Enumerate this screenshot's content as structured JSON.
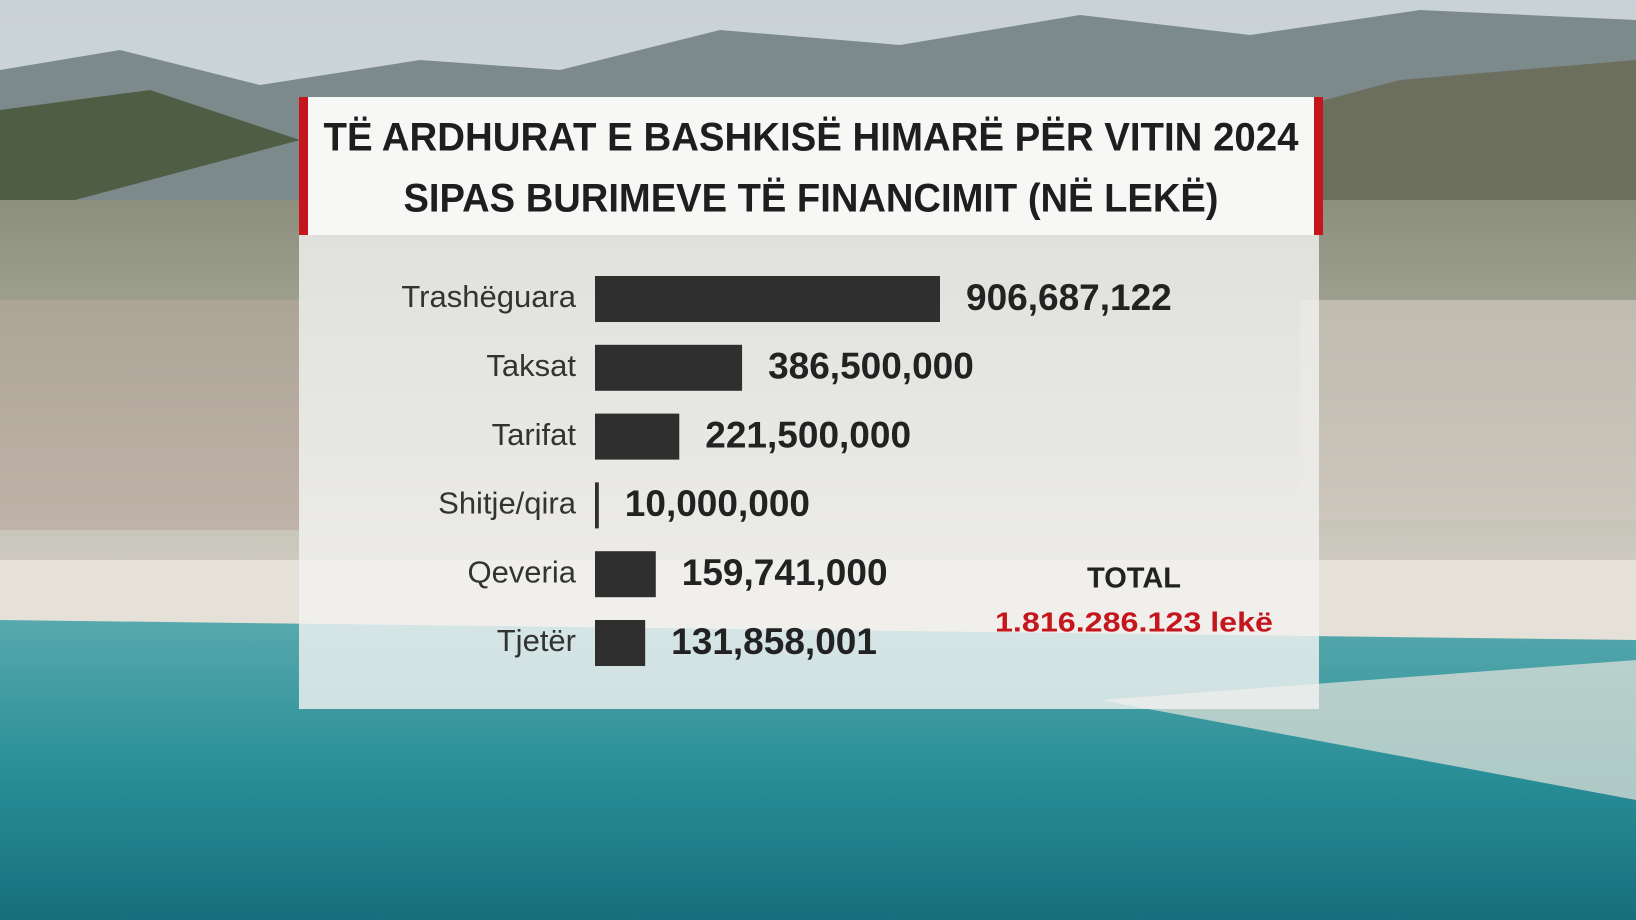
{
  "chart_data": {
    "type": "hbar",
    "title": [
      "TË ARDHURAT E BASHKISË HIMARË PËR VITIN 2024",
      "SIPAS BURIMEVE TË FINANCIMIT (NË LEKË)"
    ],
    "categories": [
      "Trashëguara",
      "Taksat",
      "Tarifat",
      "Shitje/qira",
      "Qeveria",
      "Tjetër"
    ],
    "values": [
      906687122,
      386500000,
      221500000,
      10000000,
      159741000,
      131858001
    ],
    "value_labels": [
      "906,687,122",
      "386,500,000",
      "221,500,000",
      "10,000,000",
      "159,741,000",
      "131,858,001"
    ],
    "color": "#2f2f2f",
    "total_title": "TOTAL",
    "total_label": "1.816.286.123 lekë"
  }
}
